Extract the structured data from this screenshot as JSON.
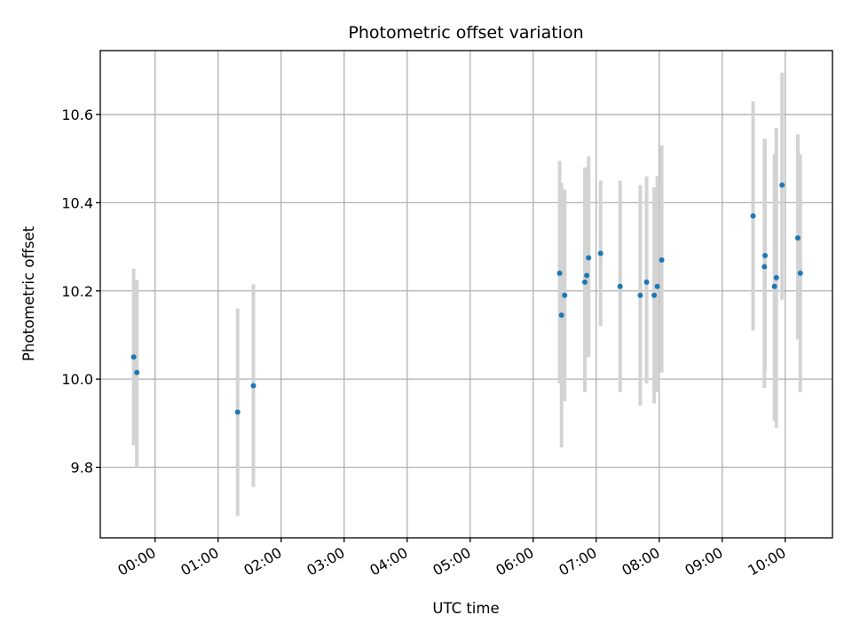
{
  "chart_data": {
    "type": "scatter",
    "title": "Photometric offset variation",
    "xlabel": "UTC time",
    "ylabel": "Photometric offset",
    "x_unit": "hours UTC",
    "xlim": [
      -0.87,
      10.75
    ],
    "ylim": [
      9.64,
      10.745
    ],
    "grid": true,
    "x_ticks": [
      {
        "value": 0,
        "label": "00:00"
      },
      {
        "value": 1,
        "label": "01:00"
      },
      {
        "value": 2,
        "label": "02:00"
      },
      {
        "value": 3,
        "label": "03:00"
      },
      {
        "value": 4,
        "label": "04:00"
      },
      {
        "value": 5,
        "label": "05:00"
      },
      {
        "value": 6,
        "label": "06:00"
      },
      {
        "value": 7,
        "label": "07:00"
      },
      {
        "value": 8,
        "label": "08:00"
      },
      {
        "value": 9,
        "label": "09:00"
      },
      {
        "value": 10,
        "label": "10:00"
      }
    ],
    "y_ticks": [
      {
        "value": 9.8,
        "label": "9.8"
      },
      {
        "value": 10.0,
        "label": "10.0"
      },
      {
        "value": 10.2,
        "label": "10.2"
      },
      {
        "value": 10.4,
        "label": "10.4"
      },
      {
        "value": 10.6,
        "label": "10.6"
      }
    ],
    "point_color": "#1f77b4",
    "errorbar_color": "#d3d3d3",
    "points": [
      {
        "x": -0.34,
        "y": 10.05,
        "ylow": 9.85,
        "yhigh": 10.25
      },
      {
        "x": -0.29,
        "y": 10.015,
        "ylow": 9.8,
        "yhigh": 10.225
      },
      {
        "x": 1.31,
        "y": 9.925,
        "ylow": 9.69,
        "yhigh": 10.16
      },
      {
        "x": 1.56,
        "y": 9.985,
        "ylow": 9.755,
        "yhigh": 10.215
      },
      {
        "x": 6.42,
        "y": 10.24,
        "ylow": 9.99,
        "yhigh": 10.495
      },
      {
        "x": 6.45,
        "y": 10.145,
        "ylow": 9.845,
        "yhigh": 10.445
      },
      {
        "x": 6.5,
        "y": 10.19,
        "ylow": 9.95,
        "yhigh": 10.43
      },
      {
        "x": 6.82,
        "y": 10.22,
        "ylow": 9.97,
        "yhigh": 10.48
      },
      {
        "x": 6.85,
        "y": 10.235,
        "ylow": 10.05,
        "yhigh": 10.48
      },
      {
        "x": 6.88,
        "y": 10.275,
        "ylow": 10.05,
        "yhigh": 10.505
      },
      {
        "x": 7.07,
        "y": 10.285,
        "ylow": 10.12,
        "yhigh": 10.45
      },
      {
        "x": 7.38,
        "y": 10.21,
        "ylow": 9.97,
        "yhigh": 10.45
      },
      {
        "x": 7.7,
        "y": 10.19,
        "ylow": 9.94,
        "yhigh": 10.44
      },
      {
        "x": 7.8,
        "y": 10.22,
        "ylow": 9.99,
        "yhigh": 10.46
      },
      {
        "x": 7.92,
        "y": 10.19,
        "ylow": 9.945,
        "yhigh": 10.435
      },
      {
        "x": 7.97,
        "y": 10.21,
        "ylow": 9.97,
        "yhigh": 10.46
      },
      {
        "x": 8.04,
        "y": 10.27,
        "ylow": 10.015,
        "yhigh": 10.53
      },
      {
        "x": 9.49,
        "y": 10.37,
        "ylow": 10.11,
        "yhigh": 10.63
      },
      {
        "x": 9.67,
        "y": 10.255,
        "ylow": 9.98,
        "yhigh": 10.545
      },
      {
        "x": 9.68,
        "y": 10.28,
        "ylow": 10.02,
        "yhigh": 10.545
      },
      {
        "x": 9.83,
        "y": 10.21,
        "ylow": 9.905,
        "yhigh": 10.51
      },
      {
        "x": 9.86,
        "y": 10.23,
        "ylow": 9.89,
        "yhigh": 10.57
      },
      {
        "x": 9.95,
        "y": 10.44,
        "ylow": 10.18,
        "yhigh": 10.695
      },
      {
        "x": 10.2,
        "y": 10.32,
        "ylow": 10.09,
        "yhigh": 10.555
      },
      {
        "x": 10.24,
        "y": 10.24,
        "ylow": 9.97,
        "yhigh": 10.51
      }
    ]
  }
}
